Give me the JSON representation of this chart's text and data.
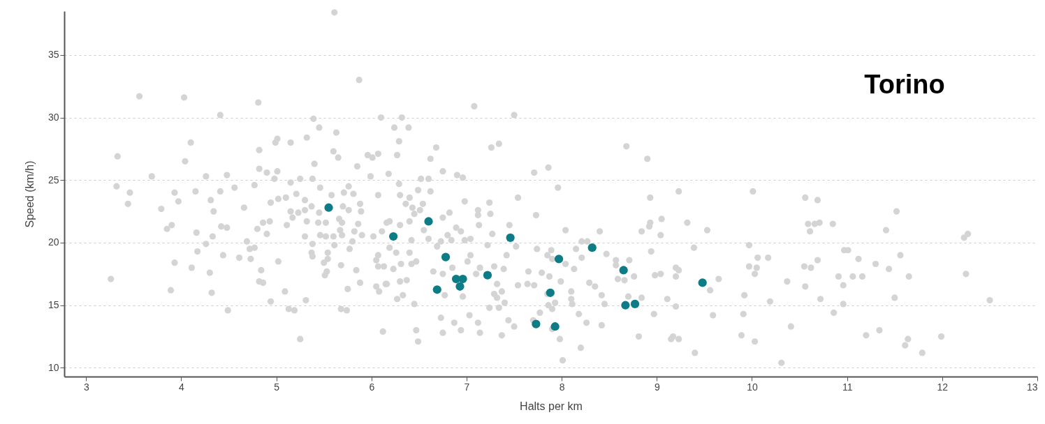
{
  "chart_data": {
    "type": "scatter",
    "title": "Torino",
    "xlabel": "Halts per km",
    "ylabel": "Speed (km/h)",
    "xlim": [
      2.77,
      13
    ],
    "ylim": [
      9.3,
      38.5
    ],
    "xticks": [
      3,
      4,
      5,
      6,
      7,
      8,
      9,
      10,
      11,
      12,
      13
    ],
    "yticks": [
      10,
      15,
      20,
      25,
      30,
      35
    ],
    "grid": "y",
    "marker": "circle",
    "series": [
      {
        "color": "#d4d4d4",
        "x": [
          5.61,
          3.56,
          4.03,
          4.81,
          4.41,
          5.87,
          7.08,
          7.5,
          6.1,
          5.39,
          5.45,
          6.24,
          5.32,
          5.01,
          4.99,
          5.15,
          5.63,
          4.1,
          5.6,
          5.65,
          5.96,
          6.01,
          6.07,
          4.82,
          5.85,
          5.4,
          3.33,
          4.04,
          4.82,
          4.9,
          5.01,
          4.98,
          5.25,
          5.38,
          5.99,
          6.18,
          3.69,
          4.26,
          4.48,
          3.32,
          3.46,
          3.93,
          4.15,
          4.41,
          4.56,
          4.77,
          5.15,
          5.46,
          5.21,
          5.76,
          5.71,
          5.81,
          5.58,
          6.07,
          6.32,
          6.39,
          6.29,
          6.27,
          6.68,
          6.62,
          7.26,
          7.34,
          6.52,
          6.6,
          6.9,
          6.96,
          6.75,
          7.71,
          7.86,
          8.68,
          8.9,
          6.29,
          6.49,
          6.62,
          6.4,
          7.96,
          8.93,
          9.23,
          6.3,
          7.54,
          10.01,
          10.56,
          10.69,
          3.44,
          3.79,
          3.97,
          4.31,
          4.34,
          4.66,
          4.94,
          5.02,
          5.1,
          5.3,
          5.37,
          5.3,
          5.15,
          5.23,
          5.45,
          5.7,
          5.76,
          5.88,
          5.89,
          3.85,
          3.9,
          4.16,
          4.33,
          4.42,
          4.48,
          4.86,
          4.93,
          4.8,
          4.9,
          5.11,
          5.17,
          5.32,
          5.44,
          5.52,
          5.66,
          5.69,
          5.67,
          5.69,
          5.46,
          5.3,
          5.52,
          5.6,
          5.82,
          5.86,
          5.9,
          6.02,
          6.11,
          6.16,
          4.26,
          4.17,
          3.93,
          4.11,
          4.3,
          4.44,
          4.61,
          4.69,
          4.72,
          4.77,
          4.73,
          4.84,
          4.82,
          4.86,
          5.02,
          5.38,
          5.37,
          5.38,
          5.54,
          5.54,
          5.61,
          5.5,
          5.53,
          5.51,
          5.68,
          5.77,
          5.8,
          5.84,
          5.88,
          5.75,
          6.05,
          6.07,
          6.07,
          6.13,
          6.05,
          6.08,
          6.15,
          6.19,
          3.26,
          3.89,
          4.32,
          4.49,
          4.94,
          5.09,
          5.31,
          5.13,
          5.19,
          5.25,
          5.68,
          5.74,
          6.12,
          6.98,
          7.24,
          7.12,
          7.12,
          7.25,
          7.13,
          6.54,
          6.51,
          6.36,
          6.43,
          6.45,
          6.4,
          6.19,
          6.3,
          6.55,
          6.6,
          6.42,
          6.69,
          6.73,
          6.82,
          6.75,
          6.89,
          6.94,
          6.8,
          6.84,
          6.98,
          7.04,
          6.26,
          6.4,
          6.47,
          6.42,
          6.31,
          6.23,
          6.65,
          6.75,
          6.85,
          7.01,
          7.04,
          7.1,
          7.14,
          7.29,
          7.39,
          7.27,
          7.22,
          7.42,
          7.52,
          7.45,
          7.73,
          8.04,
          7.74,
          7.85,
          7.89,
          7.9,
          8.04,
          8.13,
          8.15,
          8.21,
          8.27,
          8.21,
          8.4,
          8.47,
          8.57,
          8.57,
          8.71,
          8.76,
          8.66,
          8.59,
          8.29,
          8.35,
          8.42,
          8.45,
          8.7,
          8.84,
          8.84,
          8.92,
          8.93,
          9.04,
          9.05,
          8.94,
          9.32,
          9.53,
          9.39,
          8.98,
          9.04,
          9.2,
          9.23,
          9.2,
          9.11,
          9.2,
          8.97,
          8.81,
          9.15,
          9.17,
          9.23,
          9.4,
          8.2,
          8.01,
          7.98,
          7.9,
          7.7,
          7.77,
          7.86,
          7.9,
          7.93,
          7.85,
          8.1,
          8.1,
          8.11,
          8.18,
          8.26,
          8.42,
          7.54,
          7.64,
          7.71,
          7.87,
          7.99,
          7.65,
          7.79,
          7.32,
          7.37,
          7.29,
          7.32,
          7.4,
          7.34,
          7.24,
          7.44,
          7.5,
          7.37,
          7.03,
          7.12,
          7.14,
          6.87,
          6.94,
          6.73,
          6.75,
          6.47,
          6.49,
          6.45,
          6.33,
          6.27,
          6.77,
          6.96,
          6.37,
          6.3,
          6.16,
          9.97,
          10.06,
          10.17,
          9.97,
          10.05,
          10.03,
          9.65,
          9.56,
          9.92,
          10.19,
          9.91,
          9.59,
          9.89,
          10.03,
          10.31,
          10.41,
          10.37,
          10.56,
          10.55,
          10.62,
          10.69,
          10.59,
          10.61,
          10.66,
          10.71,
          10.85,
          10.97,
          11.01,
          11.12,
          11.3,
          11.44,
          10.91,
          11.06,
          11.16,
          10.96,
          10.72,
          10.96,
          10.86,
          11.2,
          11.34,
          11.5,
          11.56,
          11.65,
          11.41,
          11.52,
          11.64,
          11.61,
          11.79,
          11.99,
          12.23,
          12.27,
          12.25,
          12.5
        ],
        "values": [
          38.4,
          31.7,
          31.6,
          31.2,
          30.2,
          33.0,
          30.9,
          30.2,
          30.0,
          29.9,
          29.2,
          29.2,
          28.4,
          28.3,
          28.0,
          28.0,
          28.8,
          28.0,
          27.3,
          26.8,
          27.0,
          26.8,
          27.1,
          27.4,
          26.1,
          26.3,
          26.9,
          26.5,
          25.9,
          25.6,
          25.7,
          25.1,
          25.1,
          25.1,
          25.3,
          25.5,
          25.3,
          25.3,
          25.4,
          24.5,
          24.0,
          24.0,
          24.1,
          24.1,
          24.4,
          24.6,
          24.8,
          24.4,
          23.9,
          24.5,
          24.0,
          23.9,
          23.8,
          23.8,
          30.0,
          29.2,
          28.1,
          27.0,
          27.6,
          26.7,
          27.6,
          27.9,
          25.1,
          25.1,
          25.4,
          25.2,
          25.7,
          25.6,
          26.0,
          27.7,
          26.7,
          24.7,
          24.2,
          24.1,
          23.6,
          24.4,
          23.6,
          24.1,
          23.8,
          23.6,
          24.1,
          23.6,
          23.4,
          23.1,
          22.7,
          23.3,
          23.4,
          22.5,
          22.8,
          23.2,
          23.5,
          23.6,
          23.4,
          22.9,
          22.6,
          22.5,
          22.4,
          22.4,
          22.9,
          22.6,
          23.1,
          22.5,
          21.1,
          21.4,
          20.8,
          20.5,
          21.3,
          21.2,
          21.6,
          21.7,
          21.1,
          20.7,
          21.4,
          22.0,
          21.7,
          21.6,
          21.6,
          21.9,
          21.6,
          21.0,
          20.6,
          20.6,
          20.5,
          20.5,
          20.5,
          20.9,
          21.5,
          20.6,
          20.5,
          20.9,
          21.6,
          19.9,
          19.3,
          18.4,
          18.0,
          17.6,
          19.0,
          18.8,
          20.1,
          19.5,
          19.6,
          18.7,
          17.8,
          16.9,
          16.8,
          18.5,
          19.9,
          19.2,
          18.9,
          19.2,
          18.7,
          19.8,
          18.4,
          17.7,
          17.4,
          18.2,
          19.5,
          20.1,
          17.8,
          16.8,
          16.3,
          18.6,
          19.0,
          18.1,
          18.1,
          16.5,
          16.1,
          16.7,
          19.6,
          17.1,
          16.2,
          16.0,
          14.6,
          15.3,
          16.1,
          15.4,
          14.7,
          14.6,
          12.3,
          14.7,
          14.6,
          12.9,
          23.3,
          23.2,
          22.6,
          22.2,
          22.3,
          21.4,
          23.1,
          22.6,
          23.1,
          22.8,
          22.3,
          21.7,
          21.7,
          21.4,
          21.0,
          20.3,
          20.2,
          19.7,
          20.1,
          22.4,
          22.0,
          21.2,
          20.9,
          20.6,
          20.2,
          20.2,
          20.3,
          19.2,
          19.2,
          18.5,
          18.3,
          18.3,
          17.9,
          17.7,
          17.5,
          18.0,
          18.5,
          19.0,
          17.5,
          18.0,
          18.1,
          17.9,
          20.7,
          19.8,
          19.0,
          19.7,
          21.4,
          22.2,
          21.0,
          19.5,
          19.0,
          19.4,
          18.7,
          18.3,
          17.9,
          19.5,
          20.1,
          20.1,
          18.8,
          20.9,
          19.1,
          18.6,
          18.2,
          18.6,
          17.3,
          17.0,
          17.1,
          16.8,
          16.5,
          15.8,
          15.1,
          15.7,
          15.6,
          20.9,
          21.3,
          21.6,
          20.6,
          21.9,
          19.3,
          21.6,
          21.0,
          19.6,
          17.4,
          17.5,
          18.0,
          17.8,
          17.3,
          15.5,
          14.9,
          14.3,
          12.5,
          12.3,
          12.5,
          12.3,
          11.2,
          11.6,
          10.6,
          12.3,
          13.1,
          13.8,
          14.4,
          15.0,
          14.7,
          15.2,
          15.9,
          16.1,
          15.5,
          15.1,
          14.3,
          13.6,
          13.4,
          16.6,
          16.7,
          16.6,
          17.3,
          16.9,
          17.7,
          17.6,
          16.7,
          16.1,
          15.9,
          15.6,
          15.2,
          14.8,
          14.8,
          13.8,
          13.3,
          12.6,
          14.2,
          13.6,
          12.8,
          13.6,
          13.0,
          14.0,
          12.8,
          13.0,
          12.1,
          15.1,
          15.8,
          15.5,
          15.8,
          15.7,
          17.0,
          16.9,
          16.7,
          19.8,
          18.8,
          18.8,
          18.1,
          18.0,
          17.5,
          17.1,
          16.2,
          15.8,
          15.3,
          14.3,
          14.2,
          12.6,
          12.1,
          10.4,
          13.3,
          16.9,
          16.5,
          18.1,
          18.0,
          18.6,
          21.5,
          20.9,
          21.5,
          21.6,
          21.5,
          19.4,
          19.4,
          18.7,
          18.3,
          17.9,
          17.3,
          17.3,
          17.3,
          16.6,
          15.5,
          15.1,
          14.4,
          12.6,
          13.0,
          15.6,
          19.0,
          17.3,
          21.0,
          22.5,
          12.3,
          11.8,
          11.2,
          12.5,
          20.4,
          20.7,
          17.5,
          15.4
        ]
      },
      {
        "color": "#0e7c86",
        "x": [
          5.55,
          6.23,
          6.6,
          6.78,
          6.69,
          6.89,
          6.96,
          6.93,
          7.22,
          7.46,
          7.73,
          7.88,
          7.93,
          7.97,
          8.32,
          8.65,
          8.67,
          8.77,
          9.48
        ],
        "values": [
          22.8,
          20.5,
          21.7,
          18.85,
          16.25,
          17.1,
          17.1,
          16.5,
          17.4,
          20.4,
          13.5,
          16.0,
          13.3,
          18.7,
          19.6,
          17.8,
          15.0,
          15.1,
          16.8
        ]
      }
    ]
  }
}
